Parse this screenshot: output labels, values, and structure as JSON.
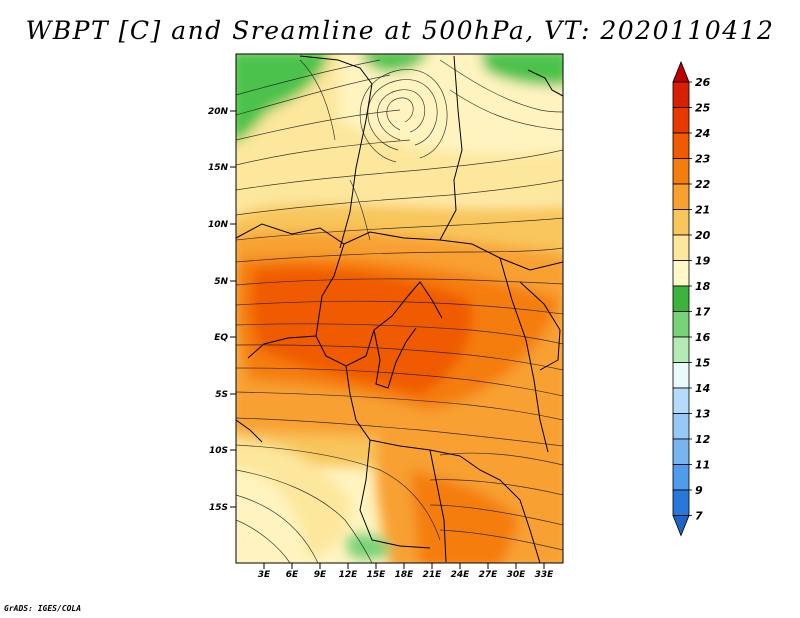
{
  "title": "WBPT [C] and Sreamline at 500hPa, VT: 2020110412",
  "credit": "GrADS: IGES/COLA",
  "map": {
    "lat_ticks": [
      "20N",
      "15N",
      "10N",
      "5N",
      "EQ",
      "5S",
      "10S",
      "15S"
    ],
    "lon_ticks": [
      "3E",
      "6E",
      "9E",
      "12E",
      "15E",
      "18E",
      "21E",
      "24E",
      "27E",
      "30E",
      "33E"
    ],
    "lon_range": [
      0,
      35
    ],
    "lat_range": [
      -20,
      25
    ],
    "field": "wet-bulb potential temperature",
    "overlay": "streamlines"
  },
  "colorbar": {
    "levels": [
      "26",
      "25",
      "24",
      "23",
      "22",
      "21",
      "20",
      "19",
      "18",
      "17",
      "16",
      "15",
      "14",
      "13",
      "12",
      "11",
      "9",
      "7"
    ],
    "colors": [
      "#c00000",
      "#d82000",
      "#e83800",
      "#f05a00",
      "#f57d0c",
      "#f8a030",
      "#f8c65c",
      "#fde79c",
      "#fff8c8",
      "#3cb43c",
      "#78d278",
      "#b4eab4",
      "#e8fafa",
      "#b4dcfa",
      "#96c8f8",
      "#78b4f0",
      "#509cec",
      "#2878dc",
      "#1e64c8"
    ]
  },
  "colors": {
    "green": "#4cc24c",
    "light_green": "#78d278",
    "pale_yellow": "#fff4c0",
    "yellow": "#fde79c",
    "light_orange": "#f8c65c",
    "orange": "#f8a030",
    "dark_orange": "#f57d0c",
    "red_orange": "#f05a00"
  }
}
